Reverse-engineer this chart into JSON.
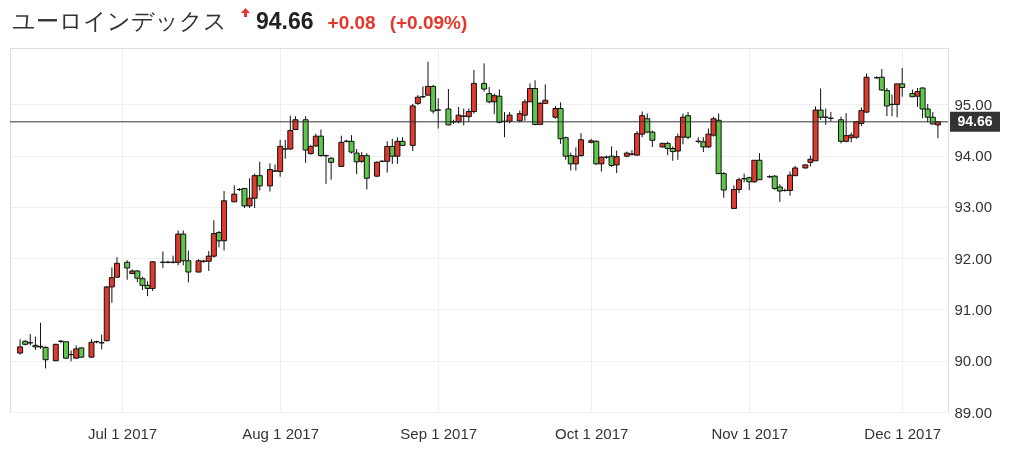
{
  "chart_data": {
    "type": "candlestick",
    "title": "ユーロインデックス",
    "subtitle": "94.66",
    "annotations": [
      "+0.08",
      "(+0.09%)"
    ],
    "x": [
      "2017-06-11",
      "2017-06-12",
      "2017-06-13",
      "2017-06-14",
      "2017-06-15",
      "2017-06-16",
      "2017-06-18",
      "2017-06-19",
      "2017-06-20",
      "2017-06-21",
      "2017-06-22",
      "2017-06-23",
      "2017-06-25",
      "2017-06-26",
      "2017-06-27",
      "2017-06-28",
      "2017-06-29",
      "2017-06-30",
      "2017-07-02",
      "2017-07-03",
      "2017-07-04",
      "2017-07-05",
      "2017-07-06",
      "2017-07-07",
      "2017-07-09",
      "2017-07-10",
      "2017-07-11",
      "2017-07-12",
      "2017-07-13",
      "2017-07-14",
      "2017-07-16",
      "2017-07-17",
      "2017-07-18",
      "2017-07-19",
      "2017-07-20",
      "2017-07-21",
      "2017-07-23",
      "2017-07-24",
      "2017-07-25",
      "2017-07-26",
      "2017-07-27",
      "2017-07-28",
      "2017-07-30",
      "2017-07-31",
      "2017-08-01",
      "2017-08-02",
      "2017-08-03",
      "2017-08-04",
      "2017-08-06",
      "2017-08-07",
      "2017-08-08",
      "2017-08-09",
      "2017-08-10",
      "2017-08-11",
      "2017-08-13",
      "2017-08-14",
      "2017-08-15",
      "2017-08-16",
      "2017-08-17",
      "2017-08-18",
      "2017-08-20",
      "2017-08-21",
      "2017-08-22",
      "2017-08-23",
      "2017-08-24",
      "2017-08-25",
      "2017-08-27",
      "2017-08-28",
      "2017-08-29",
      "2017-08-30",
      "2017-08-31",
      "2017-09-01",
      "2017-09-03",
      "2017-09-04",
      "2017-09-05",
      "2017-09-06",
      "2017-09-07",
      "2017-09-08",
      "2017-09-10",
      "2017-09-11",
      "2017-09-12",
      "2017-09-13",
      "2017-09-14",
      "2017-09-15",
      "2017-09-17",
      "2017-09-18",
      "2017-09-19",
      "2017-09-20",
      "2017-09-21",
      "2017-09-22",
      "2017-09-24",
      "2017-09-25",
      "2017-09-26",
      "2017-09-27",
      "2017-09-28",
      "2017-09-29",
      "2017-10-01",
      "2017-10-02",
      "2017-10-03",
      "2017-10-04",
      "2017-10-05",
      "2017-10-06",
      "2017-10-08",
      "2017-10-09",
      "2017-10-10",
      "2017-10-11",
      "2017-10-12",
      "2017-10-13",
      "2017-10-15",
      "2017-10-16",
      "2017-10-17",
      "2017-10-18",
      "2017-10-19",
      "2017-10-20",
      "2017-10-22",
      "2017-10-23",
      "2017-10-24",
      "2017-10-25",
      "2017-10-26",
      "2017-10-27",
      "2017-10-29",
      "2017-10-30",
      "2017-10-31",
      "2017-11-01",
      "2017-11-02",
      "2017-11-03",
      "2017-11-05",
      "2017-11-06",
      "2017-11-07",
      "2017-11-08",
      "2017-11-09",
      "2017-11-10",
      "2017-11-12",
      "2017-11-13",
      "2017-11-14",
      "2017-11-15",
      "2017-11-16",
      "2017-11-17",
      "2017-11-19",
      "2017-11-20",
      "2017-11-21",
      "2017-11-22",
      "2017-11-23",
      "2017-11-24",
      "2017-11-26",
      "2017-11-27",
      "2017-11-28",
      "2017-11-29",
      "2017-11-30",
      "2017-12-01",
      "2017-12-03",
      "2017-12-04",
      "2017-12-05",
      "2017-12-06",
      "2017-12-07",
      "2017-12-08"
    ],
    "ohlc": [
      [
        90.15,
        90.42,
        90.12,
        90.27
      ],
      [
        90.38,
        90.4,
        90.3,
        90.32
      ],
      [
        90.35,
        90.52,
        90.3,
        90.35
      ],
      [
        90.3,
        90.47,
        90.21,
        90.27
      ],
      [
        90.28,
        90.74,
        90.23,
        90.27
      ],
      [
        90.26,
        90.28,
        89.85,
        90.02
      ],
      [
        90.0,
        90.33,
        89.99,
        90.32
      ],
      [
        90.38,
        90.4,
        90.34,
        90.38
      ],
      [
        90.37,
        90.37,
        90.04,
        90.05
      ],
      [
        90.12,
        90.2,
        89.99,
        90.12
      ],
      [
        90.05,
        90.3,
        90.04,
        90.23
      ],
      [
        90.25,
        90.26,
        90.06,
        90.07
      ],
      [
        90.07,
        90.42,
        90.06,
        90.36
      ],
      [
        90.37,
        90.39,
        90.34,
        90.37
      ],
      [
        90.35,
        90.51,
        90.22,
        90.35
      ],
      [
        90.39,
        91.45,
        90.38,
        91.44
      ],
      [
        91.44,
        91.82,
        91.13,
        91.62
      ],
      [
        91.63,
        92.02,
        91.62,
        91.9
      ],
      [
        91.92,
        91.96,
        91.58,
        91.81
      ],
      [
        91.7,
        91.78,
        91.69,
        91.75
      ],
      [
        91.75,
        91.77,
        91.53,
        91.61
      ],
      [
        91.6,
        91.64,
        91.38,
        91.47
      ],
      [
        91.47,
        91.55,
        91.26,
        91.41
      ],
      [
        91.41,
        91.94,
        91.36,
        91.93
      ],
      [
        91.92,
        92.13,
        91.81,
        91.92
      ],
      [
        91.92,
        91.95,
        91.9,
        91.92
      ],
      [
        91.92,
        92.05,
        91.9,
        91.92
      ],
      [
        91.92,
        92.54,
        91.86,
        92.47
      ],
      [
        92.47,
        92.54,
        91.86,
        91.95
      ],
      [
        91.95,
        92.15,
        91.53,
        91.73
      ],
      [
        91.73,
        91.98,
        91.72,
        91.95
      ],
      [
        91.94,
        91.97,
        91.91,
        91.94
      ],
      [
        91.94,
        92.14,
        91.75,
        92.04
      ],
      [
        92.04,
        92.74,
        92.01,
        92.48
      ],
      [
        92.5,
        92.53,
        92.21,
        92.34
      ],
      [
        92.34,
        93.31,
        92.15,
        93.12
      ],
      [
        93.1,
        93.42,
        93.09,
        93.25
      ],
      [
        93.34,
        93.37,
        93.31,
        93.34
      ],
      [
        93.36,
        93.37,
        92.98,
        93.02
      ],
      [
        93.02,
        93.56,
        92.98,
        93.17
      ],
      [
        93.17,
        93.65,
        92.98,
        93.61
      ],
      [
        93.61,
        93.88,
        93.32,
        93.41
      ],
      [
        93.41,
        93.85,
        93.3,
        93.73
      ],
      [
        93.7,
        93.83,
        93.68,
        93.7
      ],
      [
        93.69,
        94.31,
        93.59,
        94.18
      ],
      [
        94.13,
        94.31,
        93.94,
        94.13
      ],
      [
        94.13,
        94.78,
        94.11,
        94.49
      ],
      [
        94.51,
        94.77,
        94.5,
        94.7
      ],
      [
        94.7,
        94.77,
        93.86,
        94.11
      ],
      [
        94.04,
        94.21,
        94.02,
        94.18
      ],
      [
        94.19,
        94.43,
        94.17,
        94.38
      ],
      [
        94.38,
        94.51,
        93.98,
        94.0
      ],
      [
        94.0,
        94.02,
        93.45,
        94.0
      ],
      [
        93.95,
        93.97,
        93.53,
        93.87
      ],
      [
        93.79,
        94.39,
        93.79,
        94.26
      ],
      [
        94.28,
        94.31,
        94.26,
        94.28
      ],
      [
        94.28,
        94.4,
        94.04,
        94.07
      ],
      [
        94.05,
        94.13,
        93.64,
        93.88
      ],
      [
        93.89,
        94.07,
        93.86,
        94.0
      ],
      [
        94.0,
        94.05,
        93.34,
        93.56
      ],
      [
        93.6,
        93.89,
        93.58,
        93.87
      ],
      [
        93.89,
        93.91,
        93.87,
        93.89
      ],
      [
        93.89,
        94.28,
        93.67,
        94.18
      ],
      [
        94.18,
        94.33,
        93.84,
        93.99
      ],
      [
        93.99,
        94.36,
        93.84,
        94.28
      ],
      [
        94.28,
        94.36,
        94.2,
        94.2
      ],
      [
        94.2,
        95.01,
        94.09,
        94.97
      ],
      [
        95.02,
        95.18,
        94.99,
        95.14
      ],
      [
        95.15,
        95.35,
        95.12,
        95.15
      ],
      [
        95.18,
        95.83,
        95.18,
        95.35
      ],
      [
        95.35,
        95.38,
        94.82,
        94.87
      ],
      [
        94.89,
        95.12,
        94.53,
        94.89
      ],
      [
        94.91,
        95.3,
        94.59,
        94.6
      ],
      [
        94.66,
        94.7,
        94.62,
        94.66
      ],
      [
        94.66,
        94.95,
        94.63,
        94.79
      ],
      [
        94.77,
        94.92,
        94.59,
        94.77
      ],
      [
        94.76,
        94.92,
        94.66,
        94.86
      ],
      [
        94.86,
        95.67,
        94.82,
        95.41
      ],
      [
        95.41,
        95.8,
        95.25,
        95.3
      ],
      [
        95.21,
        95.34,
        95.02,
        95.05
      ],
      [
        95.05,
        95.21,
        94.81,
        95.17
      ],
      [
        95.16,
        95.29,
        94.63,
        94.65
      ],
      [
        94.67,
        94.85,
        94.36,
        94.67
      ],
      [
        94.67,
        94.85,
        94.63,
        94.79
      ],
      [
        94.68,
        94.88,
        94.65,
        94.82
      ],
      [
        94.79,
        95.1,
        94.68,
        95.05
      ],
      [
        95.05,
        95.41,
        95.05,
        95.31
      ],
      [
        95.31,
        95.47,
        94.59,
        94.61
      ],
      [
        94.61,
        95.05,
        94.61,
        95.02
      ],
      [
        95.02,
        95.39,
        95.02,
        95.08
      ],
      [
        94.75,
        94.97,
        94.72,
        94.92
      ],
      [
        94.92,
        95.04,
        94.23,
        94.33
      ],
      [
        94.35,
        94.37,
        93.92,
        93.99
      ],
      [
        94.0,
        94.06,
        93.71,
        93.84
      ],
      [
        93.84,
        94.16,
        93.71,
        93.99
      ],
      [
        94.0,
        94.44,
        93.98,
        94.31
      ],
      [
        94.26,
        94.33,
        94.24,
        94.29
      ],
      [
        94.28,
        94.3,
        93.82,
        93.84
      ],
      [
        93.84,
        93.99,
        93.69,
        93.97
      ],
      [
        93.97,
        94.0,
        93.94,
        93.97
      ],
      [
        93.99,
        94.18,
        93.78,
        93.81
      ],
      [
        93.82,
        94.1,
        93.66,
        93.98
      ],
      [
        93.99,
        94.08,
        93.97,
        94.05
      ],
      [
        94.03,
        94.11,
        94.0,
        94.03
      ],
      [
        94.01,
        94.48,
        94.0,
        94.43
      ],
      [
        94.42,
        94.86,
        94.36,
        94.78
      ],
      [
        94.72,
        94.82,
        94.44,
        94.46
      ],
      [
        94.46,
        94.49,
        94.17,
        94.3
      ],
      [
        94.17,
        94.25,
        94.16,
        94.24
      ],
      [
        94.24,
        94.27,
        94.01,
        94.14
      ],
      [
        94.14,
        94.18,
        93.9,
        94.08
      ],
      [
        94.09,
        94.43,
        93.92,
        94.37
      ],
      [
        94.36,
        94.82,
        94.22,
        94.75
      ],
      [
        94.78,
        94.85,
        94.32,
        94.36
      ],
      [
        94.28,
        94.36,
        94.24,
        94.28
      ],
      [
        94.27,
        94.36,
        94.07,
        94.17
      ],
      [
        94.17,
        94.53,
        94.15,
        94.42
      ],
      [
        94.4,
        94.76,
        94.37,
        94.72
      ],
      [
        94.69,
        94.82,
        93.64,
        93.65
      ],
      [
        93.65,
        93.68,
        93.18,
        93.33
      ],
      [
        92.97,
        93.42,
        92.96,
        93.34
      ],
      [
        93.34,
        93.57,
        93.27,
        93.53
      ],
      [
        93.55,
        93.65,
        93.48,
        93.55
      ],
      [
        93.57,
        93.59,
        93.33,
        93.49
      ],
      [
        93.49,
        93.91,
        93.47,
        93.91
      ],
      [
        93.91,
        94.05,
        93.53,
        93.53
      ],
      [
        93.59,
        93.62,
        93.56,
        93.59
      ],
      [
        93.6,
        93.62,
        93.33,
        93.36
      ],
      [
        93.39,
        93.44,
        93.1,
        93.31
      ],
      [
        93.32,
        93.36,
        93.3,
        93.32
      ],
      [
        93.32,
        93.69,
        93.22,
        93.62
      ],
      [
        93.61,
        93.8,
        93.6,
        93.76
      ],
      [
        93.76,
        93.83,
        93.75,
        93.82
      ],
      [
        93.87,
        94.0,
        93.79,
        93.93
      ],
      [
        93.9,
        94.96,
        93.9,
        94.89
      ],
      [
        94.89,
        95.31,
        94.7,
        94.75
      ],
      [
        94.75,
        94.92,
        94.6,
        94.75
      ],
      [
        94.73,
        94.85,
        94.67,
        94.73
      ],
      [
        94.7,
        94.76,
        94.24,
        94.28
      ],
      [
        94.28,
        94.83,
        94.26,
        94.39
      ],
      [
        94.35,
        94.45,
        94.26,
        94.4
      ],
      [
        94.36,
        94.68,
        94.33,
        94.66
      ],
      [
        94.63,
        94.94,
        94.58,
        94.88
      ],
      [
        94.85,
        95.6,
        94.83,
        95.53
      ],
      [
        95.52,
        95.55,
        95.5,
        95.52
      ],
      [
        95.53,
        95.69,
        95.27,
        95.28
      ],
      [
        95.27,
        95.32,
        94.77,
        94.97
      ],
      [
        95.0,
        95.19,
        94.77,
        95.0
      ],
      [
        95.0,
        95.4,
        94.75,
        95.4
      ],
      [
        95.4,
        95.71,
        95.15,
        95.33
      ],
      [
        95.21,
        95.29,
        95.14,
        95.15
      ],
      [
        95.16,
        95.32,
        94.95,
        95.25
      ],
      [
        95.32,
        95.33,
        94.73,
        94.91
      ],
      [
        94.91,
        95.01,
        94.65,
        94.75
      ],
      [
        94.75,
        94.85,
        94.6,
        94.62
      ],
      [
        94.6,
        94.66,
        94.34,
        94.66
      ]
    ],
    "colors": [
      "#e0392d",
      "#5dc64b",
      "#111111",
      "#5dc64b",
      "#5dc64b",
      "#5dc64b",
      "#e0392d",
      "#111111",
      "#5dc64b",
      "#111111",
      "#e0392d",
      "#5dc64b",
      "#e0392d",
      "#111111",
      "#111111",
      "#e0392d",
      "#e0392d",
      "#e0392d",
      "#5dc64b",
      "#e0392d",
      "#5dc64b",
      "#5dc64b",
      "#5dc64b",
      "#e0392d",
      "#111111",
      "#111111",
      "#111111",
      "#e0392d",
      "#5dc64b",
      "#5dc64b",
      "#e0392d",
      "#111111",
      "#e0392d",
      "#e0392d",
      "#5dc64b",
      "#e0392d",
      "#e0392d",
      "#111111",
      "#5dc64b",
      "#e0392d",
      "#e0392d",
      "#5dc64b",
      "#e0392d",
      "#111111",
      "#e0392d",
      "#111111",
      "#e0392d",
      "#e0392d",
      "#5dc64b",
      "#e0392d",
      "#e0392d",
      "#5dc64b",
      "#111111",
      "#5dc64b",
      "#e0392d",
      "#111111",
      "#5dc64b",
      "#5dc64b",
      "#e0392d",
      "#5dc64b",
      "#e0392d",
      "#111111",
      "#e0392d",
      "#5dc64b",
      "#e0392d",
      "#5dc64b",
      "#e0392d",
      "#e0392d",
      "#111111",
      "#e0392d",
      "#5dc64b",
      "#111111",
      "#5dc64b",
      "#111111",
      "#e0392d",
      "#111111",
      "#e0392d",
      "#e0392d",
      "#5dc64b",
      "#5dc64b",
      "#e0392d",
      "#5dc64b",
      "#111111",
      "#e0392d",
      "#e0392d",
      "#e0392d",
      "#e0392d",
      "#5dc64b",
      "#e0392d",
      "#e0392d",
      "#e0392d",
      "#5dc64b",
      "#5dc64b",
      "#5dc64b",
      "#e0392d",
      "#e0392d",
      "#e0392d",
      "#5dc64b",
      "#e0392d",
      "#111111",
      "#5dc64b",
      "#e0392d",
      "#e0392d",
      "#111111",
      "#e0392d",
      "#e0392d",
      "#5dc64b",
      "#5dc64b",
      "#e0392d",
      "#5dc64b",
      "#5dc64b",
      "#e0392d",
      "#e0392d",
      "#5dc64b",
      "#111111",
      "#5dc64b",
      "#e0392d",
      "#e0392d",
      "#5dc64b",
      "#5dc64b",
      "#e0392d",
      "#e0392d",
      "#111111",
      "#5dc64b",
      "#e0392d",
      "#5dc64b",
      "#111111",
      "#5dc64b",
      "#5dc64b",
      "#111111",
      "#e0392d",
      "#e0392d",
      "#e0392d",
      "#e0392d",
      "#e0392d",
      "#5dc64b",
      "#111111",
      "#111111",
      "#5dc64b",
      "#e0392d",
      "#e0392d",
      "#e0392d",
      "#e0392d",
      "#e0392d",
      "#111111",
      "#5dc64b",
      "#5dc64b",
      "#111111",
      "#e0392d",
      "#5dc64b",
      "#5dc64b",
      "#e0392d",
      "#5dc64b",
      "#5dc64b",
      "#5dc64b",
      "#e0392d"
    ],
    "xlim": [
      "2017-06-10",
      "2017-12-09"
    ],
    "xticks": [
      {
        "value": "2017-07-01",
        "label": "Jul 1 2017"
      },
      {
        "value": "2017-08-01",
        "label": "Aug 1 2017"
      },
      {
        "value": "2017-09-01",
        "label": "Sep 1 2017"
      },
      {
        "value": "2017-10-01",
        "label": "Oct 1 2017"
      },
      {
        "value": "2017-11-01",
        "label": "Nov 1 2017"
      },
      {
        "value": "2017-12-01",
        "label": "Dec 1 2017"
      }
    ],
    "ylim": [
      89,
      96.1
    ],
    "yticks": [
      {
        "value": 89,
        "label": "89.00"
      },
      {
        "value": 90,
        "label": "90.00"
      },
      {
        "value": 91,
        "label": "91.00"
      },
      {
        "value": 92,
        "label": "92.00"
      },
      {
        "value": 93,
        "label": "93.00"
      },
      {
        "value": 94,
        "label": "94.00"
      },
      {
        "value": 95,
        "label": "95.00"
      }
    ],
    "ref_lines": [
      {
        "axis": "y",
        "value": 94.66,
        "label": "94.66",
        "color": "#333333"
      }
    ],
    "grid": true
  }
}
